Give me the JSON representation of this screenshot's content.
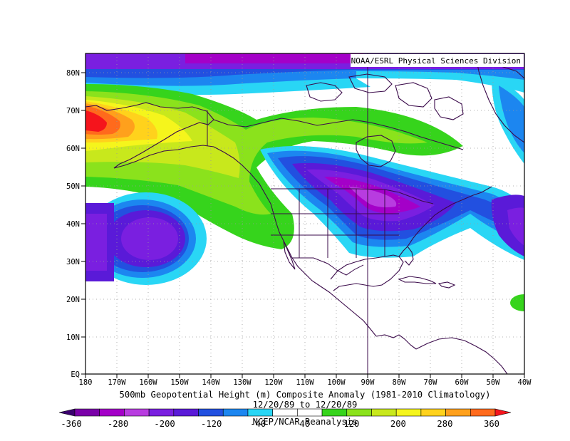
{
  "credit": "NOAA/ESRL Physical Sciences Division",
  "title": "500mb Geopotential Height (m) Composite Anomaly (1981-2010 Climatology)",
  "date_range": "12/20/89 to 12/20/89",
  "source": "NCEP/NCAR Reanalysis",
  "lat_labels": [
    "80N",
    "70N",
    "60N",
    "50N",
    "40N",
    "30N",
    "20N",
    "10N",
    "EQ"
  ],
  "lon_labels": [
    "180",
    "170W",
    "160W",
    "150W",
    "140W",
    "130W",
    "120W",
    "110W",
    "100W",
    "90W",
    "80W",
    "70W",
    "60W",
    "50W",
    "40W"
  ],
  "colorbar": {
    "tick_labels": [
      "-360",
      "-280",
      "-200",
      "-120",
      "-40",
      "40",
      "120",
      "200",
      "280",
      "360"
    ],
    "colors": [
      "#3a006e",
      "#7a00a8",
      "#a400c8",
      "#b83ce0",
      "#7a1fe0",
      "#5a1ad8",
      "#2250e0",
      "#1c86f0",
      "#29d6f5",
      "#ffffff",
      "#ffffff",
      "#36d41c",
      "#8be21c",
      "#c8e81c",
      "#f5f51c",
      "#ffd21c",
      "#ffa01c",
      "#ff6a1c",
      "#f5141c"
    ]
  },
  "map": {
    "lon_range": [
      180,
      40
    ],
    "lat_range": [
      0,
      85
    ]
  }
}
